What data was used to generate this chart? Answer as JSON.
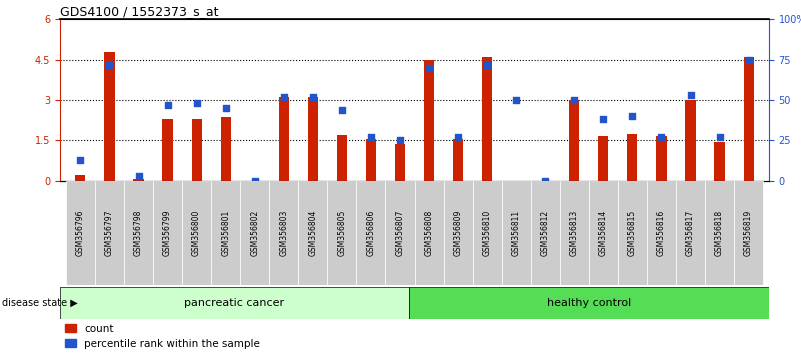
{
  "title": "GDS4100 / 1552373_s_at",
  "samples": [
    "GSM356796",
    "GSM356797",
    "GSM356798",
    "GSM356799",
    "GSM356800",
    "GSM356801",
    "GSM356802",
    "GSM356803",
    "GSM356804",
    "GSM356805",
    "GSM356806",
    "GSM356807",
    "GSM356808",
    "GSM356809",
    "GSM356810",
    "GSM356811",
    "GSM356812",
    "GSM356813",
    "GSM356814",
    "GSM356815",
    "GSM356816",
    "GSM356817",
    "GSM356818",
    "GSM356819"
  ],
  "counts": [
    0.2,
    4.8,
    0.05,
    2.3,
    2.3,
    2.35,
    0.0,
    3.1,
    3.1,
    1.7,
    1.55,
    1.35,
    4.5,
    1.55,
    4.6,
    0.0,
    0.0,
    3.0,
    1.65,
    1.75,
    1.65,
    3.0,
    1.45,
    4.6
  ],
  "percentiles": [
    13,
    72,
    3,
    47,
    48,
    45,
    0,
    52,
    52,
    44,
    27,
    25,
    70,
    27,
    72,
    50,
    0,
    50,
    38,
    40,
    27,
    53,
    27,
    75
  ],
  "pancreatic_cancer_count": 12,
  "healthy_control_count": 12,
  "ylim_left": [
    0,
    6
  ],
  "ylim_right": [
    0,
    100
  ],
  "yticks_left": [
    0,
    1.5,
    3.0,
    4.5,
    6
  ],
  "yticks_right": [
    0,
    25,
    50,
    75,
    100
  ],
  "ytick_labels_left": [
    "0",
    "1.5",
    "3",
    "4.5",
    "6"
  ],
  "ytick_labels_right": [
    "0",
    "25",
    "50",
    "75",
    "100%"
  ],
  "bar_color": "#CC2200",
  "dot_color": "#2255CC",
  "bg_color_pancreatic": "#CCFFCC",
  "bg_color_healthy": "#55DD55",
  "label_band_color": "#CCCCCC",
  "legend_count_label": "count",
  "legend_pct_label": "percentile rank within the sample",
  "group_labels": [
    "pancreatic cancer",
    "healthy control"
  ],
  "disease_state_label": "disease state ▶"
}
